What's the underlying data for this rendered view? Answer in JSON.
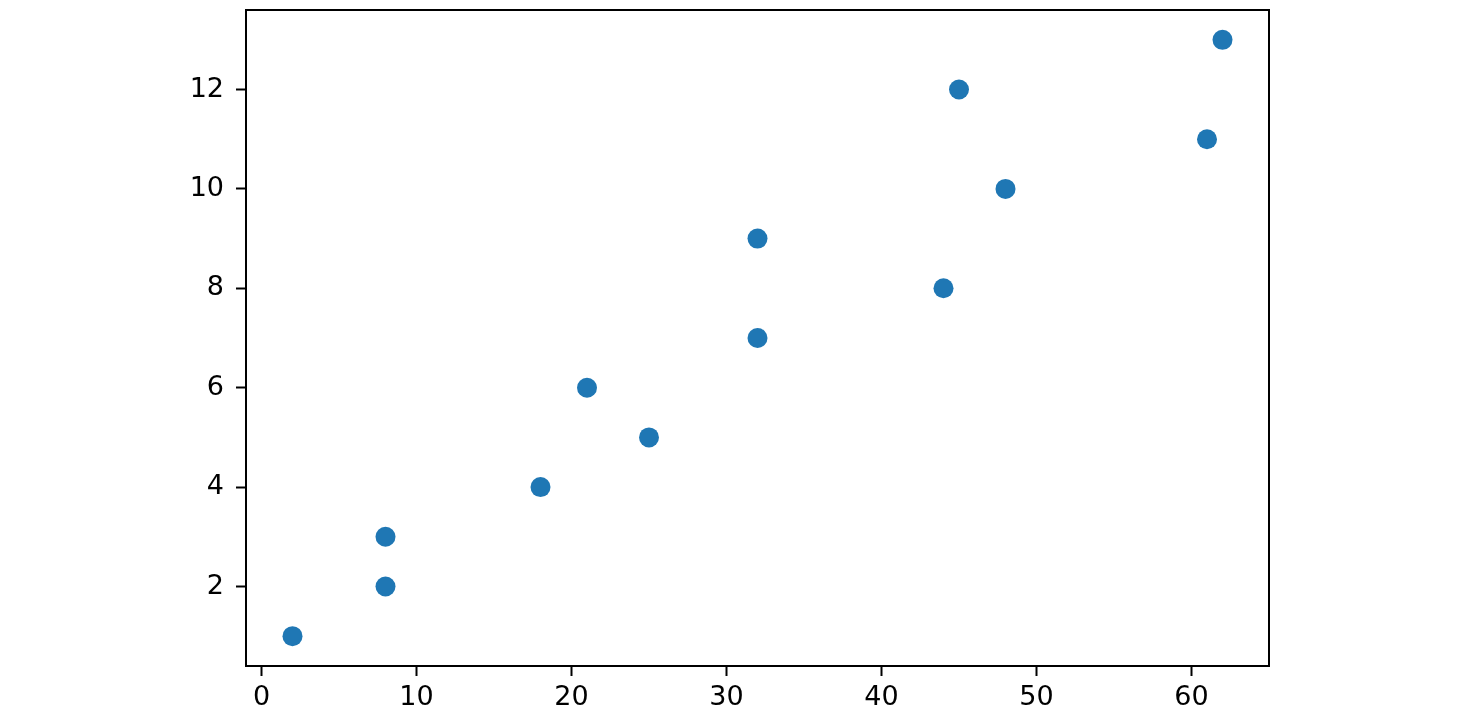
{
  "chart_data": {
    "type": "scatter",
    "x": [
      2,
      8,
      8,
      18,
      25,
      21,
      32,
      44,
      32,
      48,
      61,
      45,
      62
    ],
    "series": [
      {
        "color": "#1f77b4",
        "values": [
          1,
          2,
          3,
          4,
          5,
          6,
          7,
          8,
          9,
          10,
          11,
          12,
          13
        ]
      }
    ],
    "xlim": [
      -1,
      65
    ],
    "ylim": [
      0.4,
      13.6
    ],
    "xticks": [
      0,
      10,
      20,
      30,
      40,
      50,
      60
    ],
    "yticks": [
      2,
      4,
      6,
      8,
      10,
      12
    ],
    "marker": "circle"
  }
}
